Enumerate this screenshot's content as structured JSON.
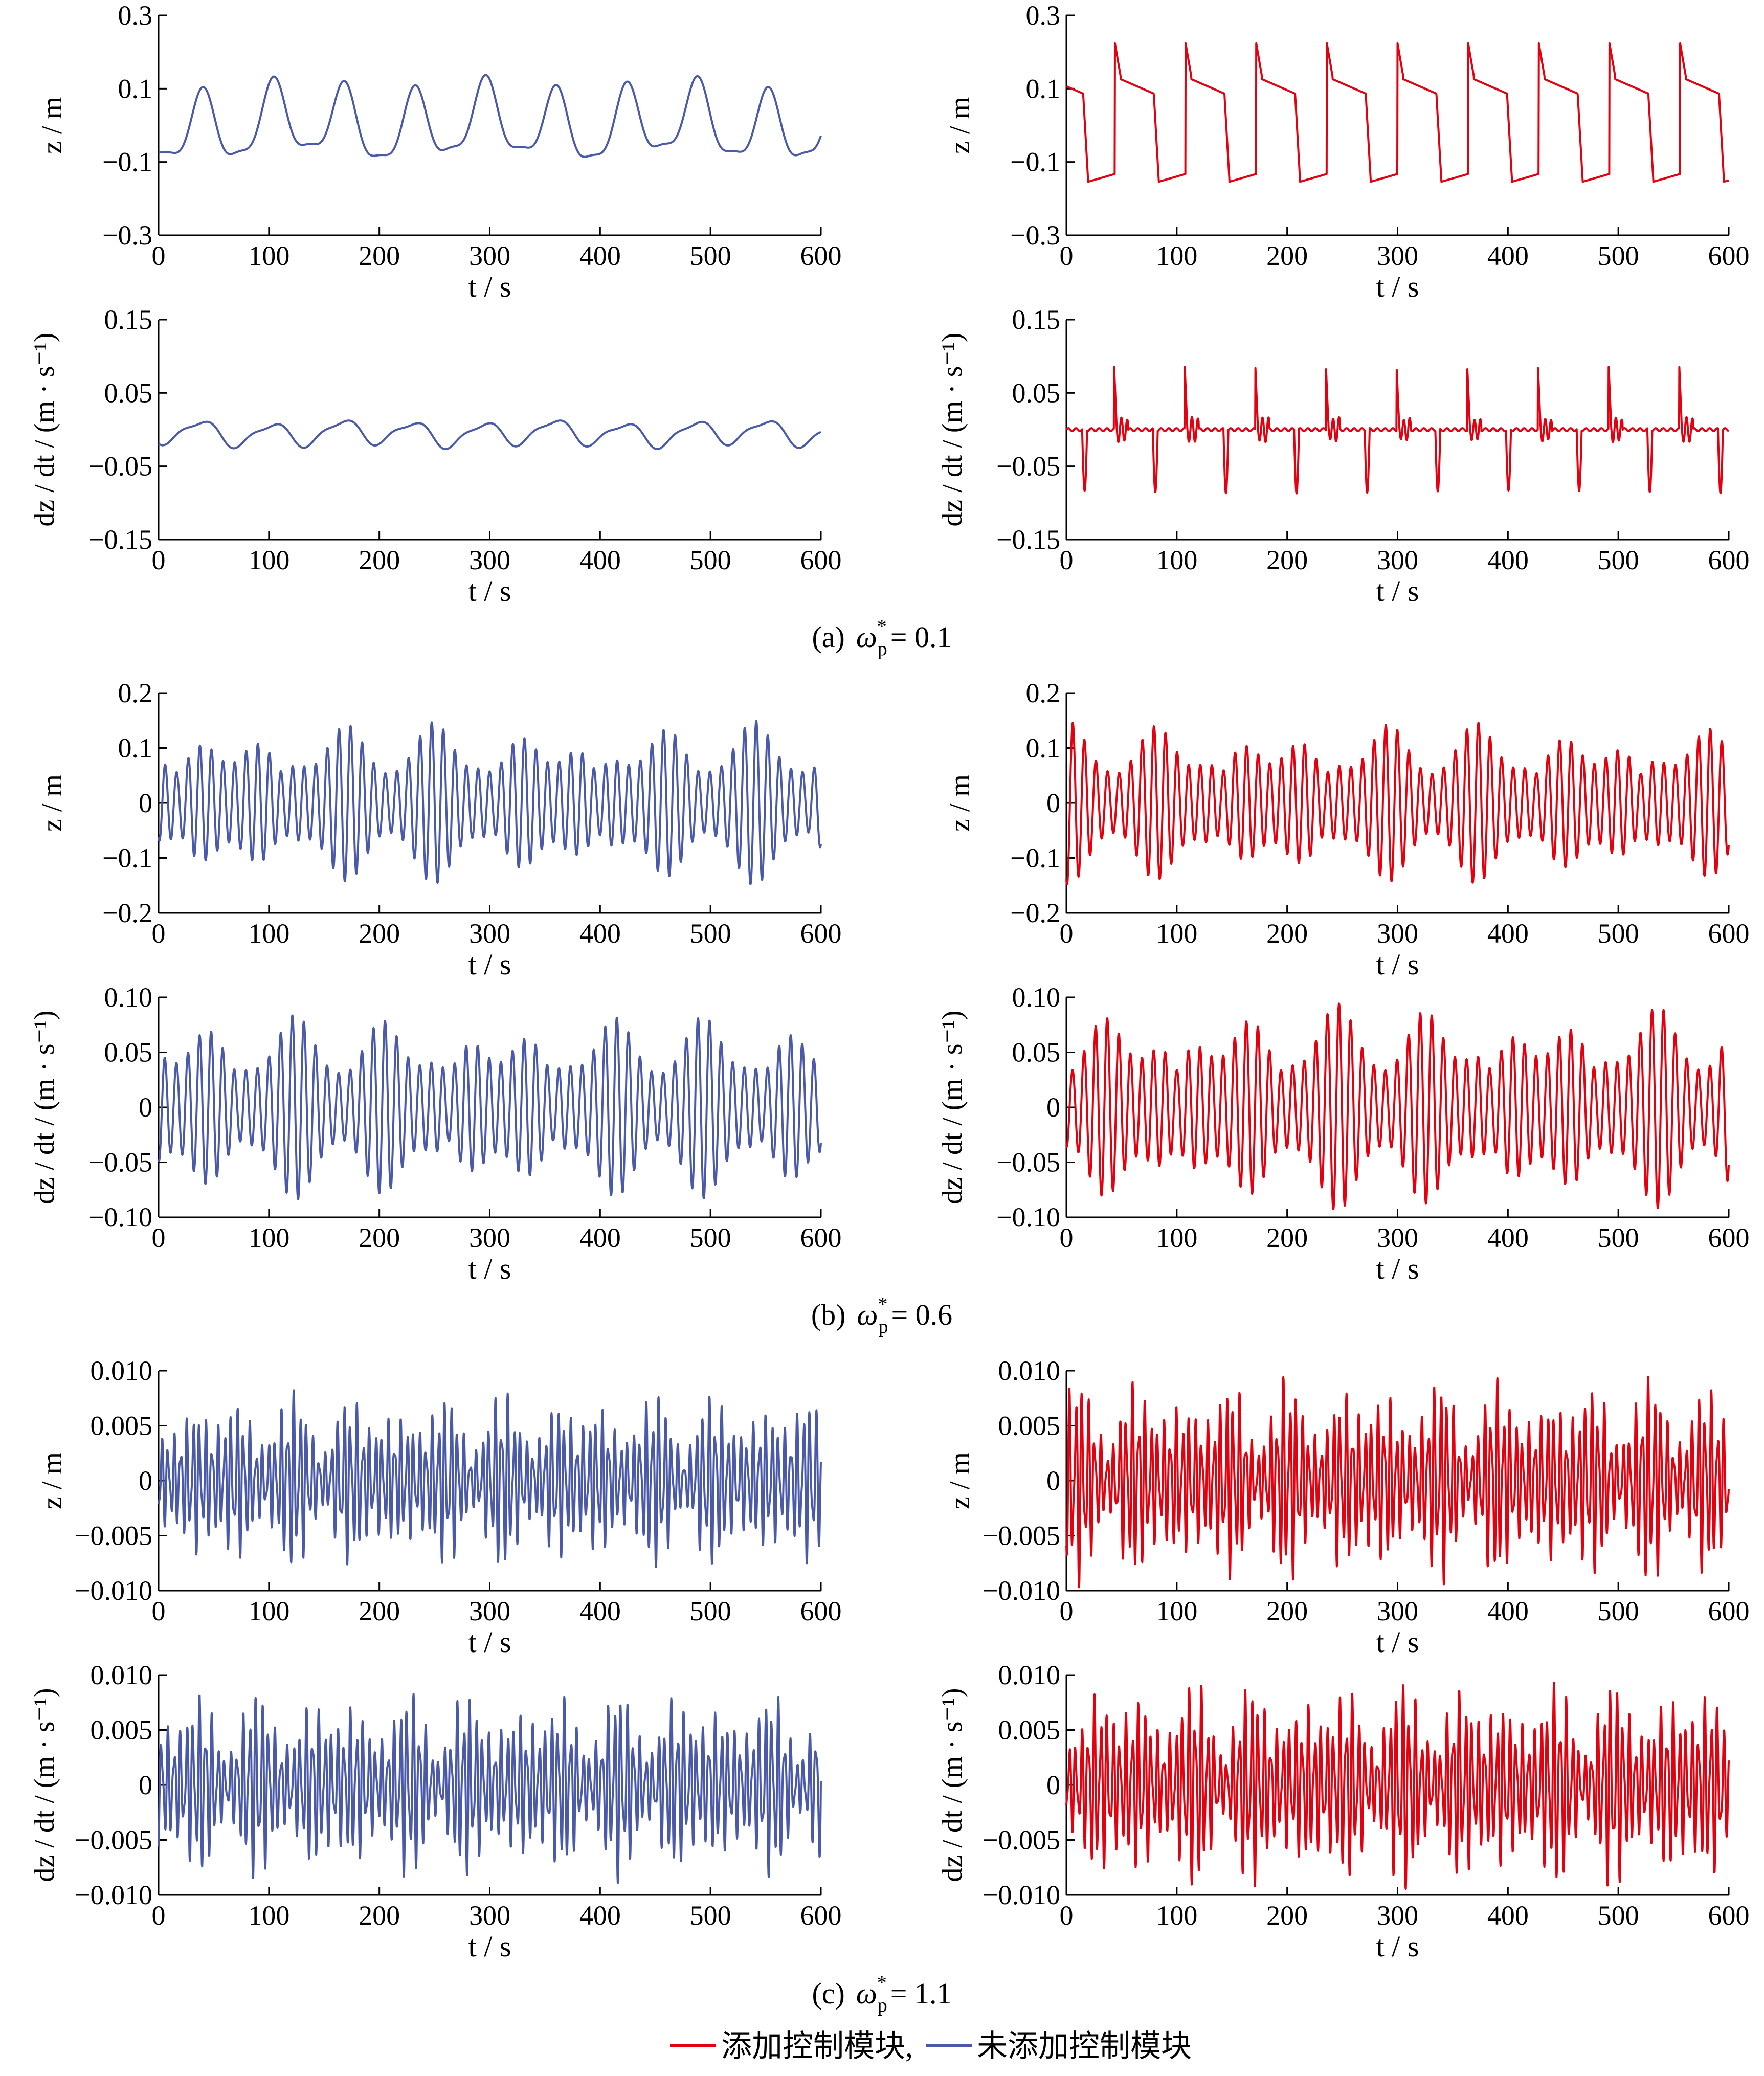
{
  "colors": {
    "controlled": "#e3000f",
    "uncontrolled": "#4a5aa8",
    "axis": "#000000"
  },
  "chart_data": [
    {
      "type": "line",
      "group": "a",
      "row": "z",
      "x": {
        "label": "t / s",
        "range": [
          0,
          600
        ],
        "ticks": [
          "0",
          "100",
          "200",
          "300",
          "400",
          "500",
          "600"
        ]
      },
      "y": {
        "label": "z / m",
        "range": [
          -0.3,
          0.3
        ],
        "ticks": [
          "−0.3",
          "−0.1",
          "0.1",
          "0.3"
        ]
      },
      "series": [
        {
          "name": "未添加控制模块",
          "color": "#4a5aa8",
          "wave": "smooth",
          "period": 64,
          "amplitude": 0.11,
          "offset": 0.0
        }
      ]
    },
    {
      "type": "line",
      "group": "a",
      "row": "z",
      "x": {
        "label": "t / s",
        "range": [
          0,
          600
        ],
        "ticks": [
          "0",
          "100",
          "200",
          "300",
          "400",
          "500",
          "600"
        ]
      },
      "y": {
        "label": "z / m",
        "range": [
          -0.3,
          0.3
        ],
        "ticks": [
          "−0.3",
          "−0.1",
          "0.1",
          "0.3"
        ]
      },
      "series": [
        {
          "name": "添加控制模块",
          "color": "#e3000f",
          "wave": "relax",
          "period": 64,
          "amplitude": 0.14,
          "offset": 0.0
        }
      ]
    },
    {
      "type": "line",
      "group": "a",
      "row": "dz",
      "x": {
        "label": "t / s",
        "range": [
          0,
          600
        ],
        "ticks": [
          "0",
          "100",
          "200",
          "300",
          "400",
          "500",
          "600"
        ]
      },
      "y": {
        "label": "dz / dt / (m · s⁻¹)",
        "range": [
          -0.15,
          0.15
        ],
        "ticks": [
          "−0.15",
          "−0.05",
          "0.05",
          "0.15"
        ]
      },
      "series": [
        {
          "name": "未添加控制模块",
          "color": "#4a5aa8",
          "wave": "smooth",
          "period": 64,
          "amplitude": 0.018,
          "offset": -0.005
        }
      ]
    },
    {
      "type": "line",
      "group": "a",
      "row": "dz",
      "x": {
        "label": "t / s",
        "range": [
          0,
          600
        ],
        "ticks": [
          "0",
          "100",
          "200",
          "300",
          "400",
          "500",
          "600"
        ]
      },
      "y": {
        "label": "dz / dt / (m · s⁻¹)",
        "range": [
          -0.15,
          0.15
        ],
        "ticks": [
          "−0.15",
          "−0.05",
          "0.05",
          "0.15"
        ]
      },
      "series": [
        {
          "name": "添加控制模块",
          "color": "#e3000f",
          "wave": "spike",
          "period": 64,
          "amplitude": 0.1,
          "offset": 0.0
        }
      ]
    },
    {
      "type": "line",
      "group": "b",
      "row": "z",
      "x": {
        "label": "t / s",
        "range": [
          0,
          600
        ],
        "ticks": [
          "0",
          "100",
          "200",
          "300",
          "400",
          "500",
          "600"
        ]
      },
      "y": {
        "label": "z / m",
        "range": [
          -0.2,
          0.2
        ],
        "ticks": [
          "−0.2",
          "−0.1",
          "0",
          "0.1",
          "0.2"
        ]
      },
      "series": [
        {
          "name": "未添加控制模块",
          "color": "#4a5aa8",
          "wave": "beat",
          "period": 10.5,
          "amplitude": 0.15,
          "offset": 0.0
        }
      ]
    },
    {
      "type": "line",
      "group": "b",
      "row": "z",
      "x": {
        "label": "t / s",
        "range": [
          0,
          600
        ],
        "ticks": [
          "0",
          "100",
          "200",
          "300",
          "400",
          "500",
          "600"
        ]
      },
      "y": {
        "label": "z / m",
        "range": [
          -0.2,
          0.2
        ],
        "ticks": [
          "−0.2",
          "−0.1",
          "0",
          "0.1",
          "0.2"
        ]
      },
      "series": [
        {
          "name": "添加控制模块",
          "color": "#e3000f",
          "wave": "beat",
          "period": 10.5,
          "amplitude": 0.15,
          "offset": 0.0
        }
      ]
    },
    {
      "type": "line",
      "group": "b",
      "row": "dz",
      "x": {
        "label": "t / s",
        "range": [
          0,
          600
        ],
        "ticks": [
          "0",
          "100",
          "200",
          "300",
          "400",
          "500",
          "600"
        ]
      },
      "y": {
        "label": "dz / dt / (m · s⁻¹)",
        "range": [
          -0.1,
          0.1
        ],
        "ticks": [
          "−0.10",
          "−0.05",
          "0",
          "0.05",
          "0.10"
        ]
      },
      "series": [
        {
          "name": "未添加控制模块",
          "color": "#4a5aa8",
          "wave": "beat",
          "period": 10.5,
          "amplitude": 0.085,
          "offset": 0.0
        }
      ]
    },
    {
      "type": "line",
      "group": "b",
      "row": "dz",
      "x": {
        "label": "t / s",
        "range": [
          0,
          600
        ],
        "ticks": [
          "0",
          "100",
          "200",
          "300",
          "400",
          "500",
          "600"
        ]
      },
      "y": {
        "label": "dz / dt / (m · s⁻¹)",
        "range": [
          -0.1,
          0.1
        ],
        "ticks": [
          "−0.10",
          "−0.05",
          "0",
          "0.05",
          "0.10"
        ]
      },
      "series": [
        {
          "name": "添加控制模块",
          "color": "#e3000f",
          "wave": "beat",
          "period": 10.5,
          "amplitude": 0.095,
          "offset": 0.0
        }
      ]
    },
    {
      "type": "line",
      "group": "c",
      "row": "z",
      "x": {
        "label": "t / s",
        "range": [
          0,
          600
        ],
        "ticks": [
          "0",
          "100",
          "200",
          "300",
          "400",
          "500",
          "600"
        ]
      },
      "y": {
        "label": "z / m",
        "range": [
          -0.01,
          0.01
        ],
        "ticks": [
          "−0.010",
          "−0.005",
          "0",
          "0.005",
          "0.010"
        ]
      },
      "series": [
        {
          "name": "未添加控制模块",
          "color": "#4a5aa8",
          "wave": "noise",
          "period": 5.7,
          "amplitude": 0.0085,
          "offset": 0.0
        }
      ]
    },
    {
      "type": "line",
      "group": "c",
      "row": "z",
      "x": {
        "label": "t / s",
        "range": [
          0,
          600
        ],
        "ticks": [
          "0",
          "100",
          "200",
          "300",
          "400",
          "500",
          "600"
        ]
      },
      "y": {
        "label": "z / m",
        "range": [
          -0.01,
          0.01
        ],
        "ticks": [
          "−0.010",
          "−0.005",
          "0",
          "0.005",
          "0.010"
        ]
      },
      "series": [
        {
          "name": "添加控制模块",
          "color": "#e3000f",
          "wave": "noise",
          "period": 5.7,
          "amplitude": 0.0098,
          "offset": 0.0
        }
      ]
    },
    {
      "type": "line",
      "group": "c",
      "row": "dz",
      "x": {
        "label": "t / s",
        "range": [
          0,
          600
        ],
        "ticks": [
          "0",
          "100",
          "200",
          "300",
          "400",
          "500",
          "600"
        ]
      },
      "y": {
        "label": "dz / dt / (m · s⁻¹)",
        "range": [
          -0.01,
          0.01
        ],
        "ticks": [
          "−0.010",
          "−0.005",
          "0",
          "0.005",
          "0.010"
        ]
      },
      "series": [
        {
          "name": "未添加控制模块",
          "color": "#4a5aa8",
          "wave": "noise",
          "period": 5.7,
          "amplitude": 0.009,
          "offset": 0.0
        }
      ]
    },
    {
      "type": "line",
      "group": "c",
      "row": "dz",
      "x": {
        "label": "t / s",
        "range": [
          0,
          600
        ],
        "ticks": [
          "0",
          "100",
          "200",
          "300",
          "400",
          "500",
          "600"
        ]
      },
      "y": {
        "label": "dz / dt / (m · s⁻¹)",
        "range": [
          -0.011,
          0.011
        ],
        "ticks": [
          "−0.010",
          "−0.005",
          "0",
          "0.005",
          "0.010"
        ]
      },
      "series": [
        {
          "name": "添加控制模块",
          "color": "#e3000f",
          "wave": "noise",
          "period": 5.7,
          "amplitude": 0.011,
          "offset": 0.0
        }
      ]
    }
  ],
  "captions": {
    "a": {
      "label": "(a)",
      "symbol": "ω",
      "sup": "*",
      "sub": "p",
      "value": "= 0.1"
    },
    "b": {
      "label": "(b)",
      "symbol": "ω",
      "sup": "*",
      "sub": "p",
      "value": "= 0.6"
    },
    "c": {
      "label": "(c)",
      "symbol": "ω",
      "sup": "*",
      "sub": "p",
      "value": "= 1.1"
    }
  },
  "legend": {
    "items": [
      {
        "label": "添加控制模块,",
        "color": "#e3000f"
      },
      {
        "label": "未添加控制模块",
        "color": "#4a5aa8"
      }
    ]
  }
}
